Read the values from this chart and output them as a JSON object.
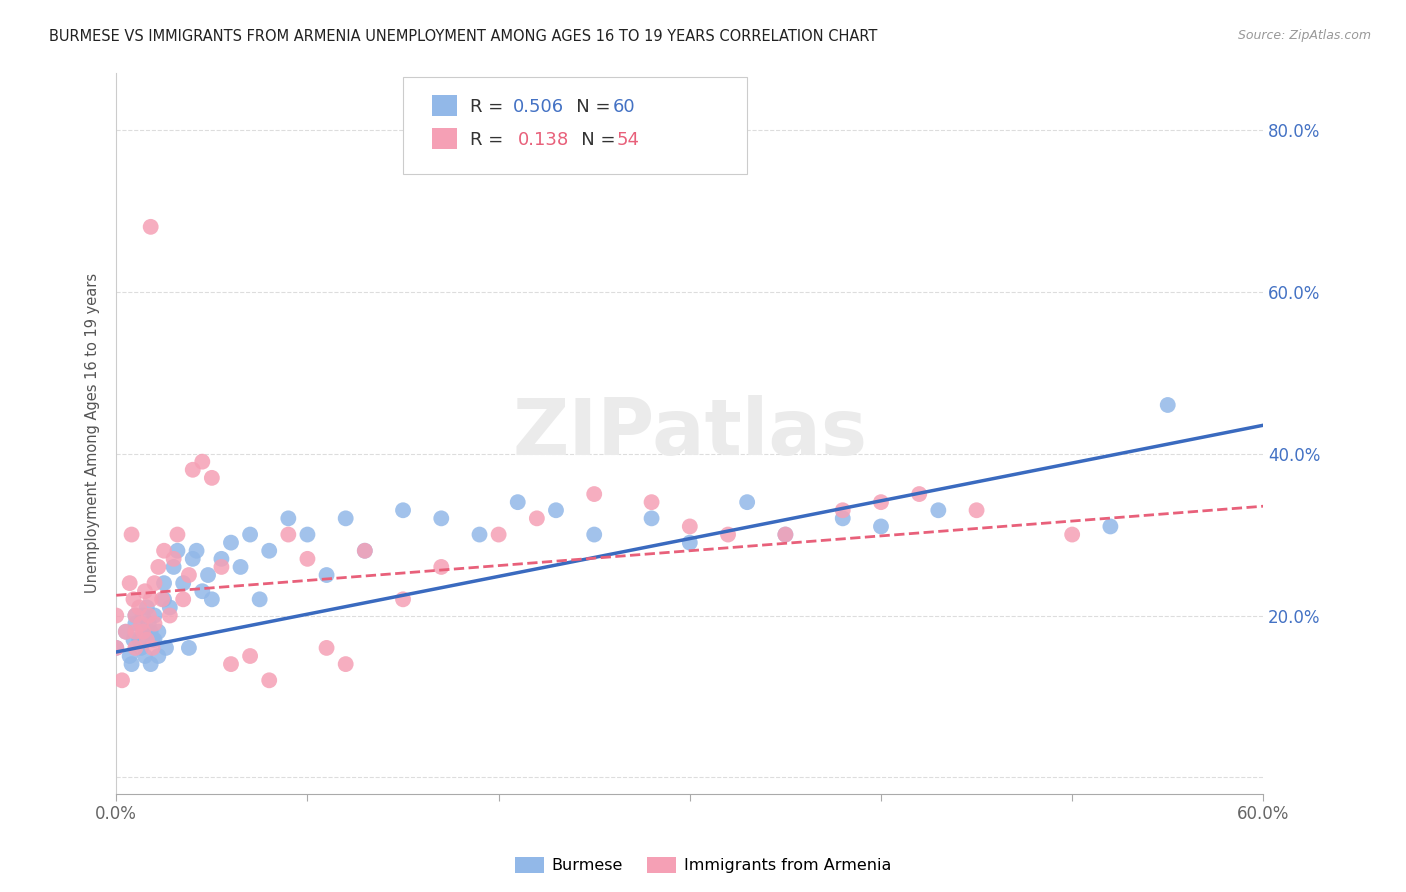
{
  "title": "BURMESE VS IMMIGRANTS FROM ARMENIA UNEMPLOYMENT AMONG AGES 16 TO 19 YEARS CORRELATION CHART",
  "source": "Source: ZipAtlas.com",
  "ylabel": "Unemployment Among Ages 16 to 19 years",
  "xlim": [
    0.0,
    0.6
  ],
  "ylim": [
    -0.02,
    0.87
  ],
  "burmese_color": "#92b8e8",
  "armenia_color": "#f5a0b5",
  "burmese_line_color": "#3a6abf",
  "armenia_line_color": "#e8607a",
  "legend_R_burmese": "0.506",
  "legend_N_burmese": "60",
  "legend_R_armenia": "0.138",
  "legend_N_armenia": "54",
  "burmese_x": [
    0.0,
    0.005,
    0.007,
    0.008,
    0.009,
    0.01,
    0.01,
    0.012,
    0.013,
    0.014,
    0.015,
    0.015,
    0.016,
    0.017,
    0.018,
    0.018,
    0.019,
    0.02,
    0.02,
    0.022,
    0.022,
    0.025,
    0.025,
    0.026,
    0.028,
    0.03,
    0.032,
    0.035,
    0.038,
    0.04,
    0.042,
    0.045,
    0.048,
    0.05,
    0.055,
    0.06,
    0.065,
    0.07,
    0.075,
    0.08,
    0.09,
    0.1,
    0.11,
    0.12,
    0.13,
    0.15,
    0.17,
    0.19,
    0.21,
    0.23,
    0.25,
    0.28,
    0.3,
    0.33,
    0.35,
    0.38,
    0.4,
    0.43,
    0.52,
    0.55
  ],
  "burmese_y": [
    0.16,
    0.18,
    0.15,
    0.14,
    0.17,
    0.2,
    0.19,
    0.17,
    0.16,
    0.2,
    0.18,
    0.15,
    0.21,
    0.19,
    0.14,
    0.18,
    0.17,
    0.2,
    0.17,
    0.18,
    0.15,
    0.24,
    0.22,
    0.16,
    0.21,
    0.26,
    0.28,
    0.24,
    0.16,
    0.27,
    0.28,
    0.23,
    0.25,
    0.22,
    0.27,
    0.29,
    0.26,
    0.3,
    0.22,
    0.28,
    0.32,
    0.3,
    0.25,
    0.32,
    0.28,
    0.33,
    0.32,
    0.3,
    0.34,
    0.33,
    0.3,
    0.32,
    0.29,
    0.34,
    0.3,
    0.32,
    0.31,
    0.33,
    0.31,
    0.46
  ],
  "armenia_x": [
    0.0,
    0.0,
    0.003,
    0.005,
    0.007,
    0.008,
    0.009,
    0.01,
    0.01,
    0.01,
    0.012,
    0.013,
    0.014,
    0.015,
    0.016,
    0.017,
    0.018,
    0.019,
    0.02,
    0.02,
    0.022,
    0.024,
    0.025,
    0.028,
    0.03,
    0.032,
    0.035,
    0.038,
    0.04,
    0.045,
    0.05,
    0.055,
    0.06,
    0.07,
    0.08,
    0.09,
    0.1,
    0.11,
    0.12,
    0.13,
    0.15,
    0.17,
    0.2,
    0.22,
    0.25,
    0.28,
    0.3,
    0.32,
    0.35,
    0.38,
    0.4,
    0.42,
    0.45,
    0.5
  ],
  "armenia_y": [
    0.2,
    0.16,
    0.12,
    0.18,
    0.24,
    0.3,
    0.22,
    0.2,
    0.18,
    0.16,
    0.21,
    0.19,
    0.18,
    0.23,
    0.17,
    0.2,
    0.22,
    0.16,
    0.24,
    0.19,
    0.26,
    0.22,
    0.28,
    0.2,
    0.27,
    0.3,
    0.22,
    0.25,
    0.38,
    0.39,
    0.37,
    0.26,
    0.14,
    0.15,
    0.12,
    0.3,
    0.27,
    0.16,
    0.14,
    0.28,
    0.22,
    0.26,
    0.3,
    0.32,
    0.35,
    0.34,
    0.31,
    0.3,
    0.3,
    0.33,
    0.34,
    0.35,
    0.33,
    0.3
  ],
  "armenia_outlier_x": [
    0.018
  ],
  "armenia_outlier_y": [
    0.68
  ],
  "burmese_trendline_x0": 0.0,
  "burmese_trendline_y0": 0.155,
  "burmese_trendline_x1": 0.6,
  "burmese_trendline_y1": 0.435,
  "armenia_trendline_x0": 0.0,
  "armenia_trendline_y0": 0.225,
  "armenia_trendline_x1": 0.6,
  "armenia_trendline_y1": 0.335
}
